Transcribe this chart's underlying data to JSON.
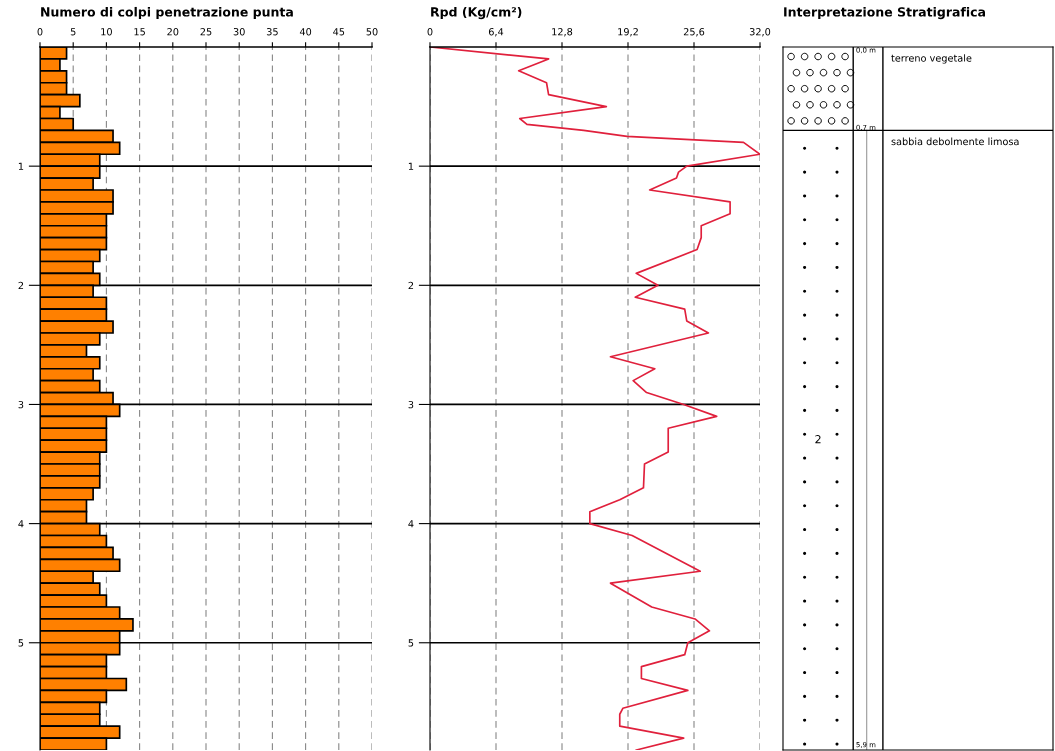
{
  "chart_data": [
    {
      "type": "bar",
      "orientation": "horizontal",
      "title": "Numero di colpi penetrazione punta",
      "x": [
        0.05,
        0.15,
        0.25,
        0.35,
        0.45,
        0.55,
        0.65,
        0.75,
        0.85,
        0.95,
        1.05,
        1.15,
        1.25,
        1.35,
        1.45,
        1.55,
        1.65,
        1.75,
        1.85,
        1.95,
        2.05,
        2.15,
        2.25,
        2.35,
        2.45,
        2.55,
        2.65,
        2.75,
        2.85,
        2.95,
        3.05,
        3.15,
        3.25,
        3.35,
        3.45,
        3.55,
        3.65,
        3.75,
        3.85,
        3.95,
        4.05,
        4.15,
        4.25,
        4.35,
        4.45,
        4.55,
        4.65,
        4.75,
        4.85,
        4.95,
        5.05,
        5.15,
        5.25,
        5.35,
        5.45,
        5.55,
        5.65,
        5.75,
        5.85
      ],
      "values": [
        4,
        3,
        4,
        4,
        6,
        3,
        5,
        11,
        12,
        9,
        9,
        8,
        11,
        11,
        10,
        10,
        10,
        9,
        8,
        9,
        8,
        10,
        10,
        11,
        9,
        7,
        9,
        8,
        9,
        11,
        12,
        10,
        10,
        10,
        9,
        9,
        9,
        8,
        7,
        7,
        9,
        10,
        11,
        12,
        8,
        9,
        10,
        12,
        14,
        12,
        12,
        10,
        10,
        13,
        10,
        9,
        9,
        12,
        10
      ],
      "color": "#ff8000",
      "xlim": [
        0,
        50
      ],
      "xticks": [
        0,
        5,
        10,
        15,
        20,
        25,
        30,
        35,
        40,
        45,
        50
      ],
      "ylim": [
        5.9,
        0
      ],
      "yticks": [
        1,
        2,
        3,
        4,
        5
      ],
      "grid": true
    },
    {
      "type": "line",
      "title": "Rpd (Kg/cm²)",
      "values": [
        0,
        0.1,
        0.2,
        0.3,
        0.4,
        0.5,
        0.6,
        0.65,
        0.7,
        0.75,
        0.8,
        0.9,
        1.0,
        1.05,
        1.1,
        1.2,
        1.3,
        1.4,
        1.5,
        1.6,
        1.7,
        1.9,
        2.0,
        2.1,
        2.2,
        2.3,
        2.4,
        2.6,
        2.7,
        2.8,
        2.9,
        3.0,
        3.1,
        3.2,
        3.4,
        3.5,
        3.7,
        3.8,
        3.9,
        4.0,
        4.1,
        4.4,
        4.5,
        4.7,
        4.8,
        4.9,
        5.0,
        5.1,
        5.2,
        5.3,
        5.4,
        5.55,
        5.6,
        5.7,
        5.8,
        5.9
      ],
      "x": [
        0,
        11.5,
        8.6,
        11.3,
        11.5,
        17.1,
        8.7,
        9.4,
        14.9,
        19.1,
        30.4,
        32.0,
        24.9,
        24.1,
        23.9,
        21.3,
        29.1,
        29.1,
        26.3,
        26.3,
        25.9,
        20.0,
        22.1,
        19.9,
        24.7,
        24.9,
        27.0,
        17.5,
        21.8,
        19.7,
        21.0,
        24.6,
        27.8,
        23.1,
        23.1,
        20.8,
        20.7,
        18.4,
        15.5,
        15.5,
        19.6,
        26.2,
        17.5,
        21.5,
        25.7,
        27.1,
        25.0,
        24.7,
        20.5,
        20.5,
        25.0,
        18.7,
        18.4,
        18.4,
        24.6,
        20.0
      ],
      "color": "#e0203c",
      "xlim": [
        0,
        32
      ],
      "xticks": [
        0,
        {
          "value": 6.4,
          "label": "6,4"
        },
        {
          "value": 12.8,
          "label": "12,8"
        },
        {
          "value": 19.2,
          "label": "19,2"
        },
        {
          "value": 25.6,
          "label": "25,6"
        },
        {
          "value": 32,
          "label": "32,0"
        }
      ],
      "ylim": [
        5.9,
        0
      ],
      "yticks": [
        1,
        2,
        3,
        4,
        5
      ],
      "grid": true
    },
    {
      "type": "other",
      "title": "Interpretazione Stratigrafica",
      "annotations": [
        "terreno vegetale",
        "sabbia debolmente limosa",
        "0,0 m",
        "0,7 m",
        "5,9 m",
        "2"
      ]
    }
  ]
}
